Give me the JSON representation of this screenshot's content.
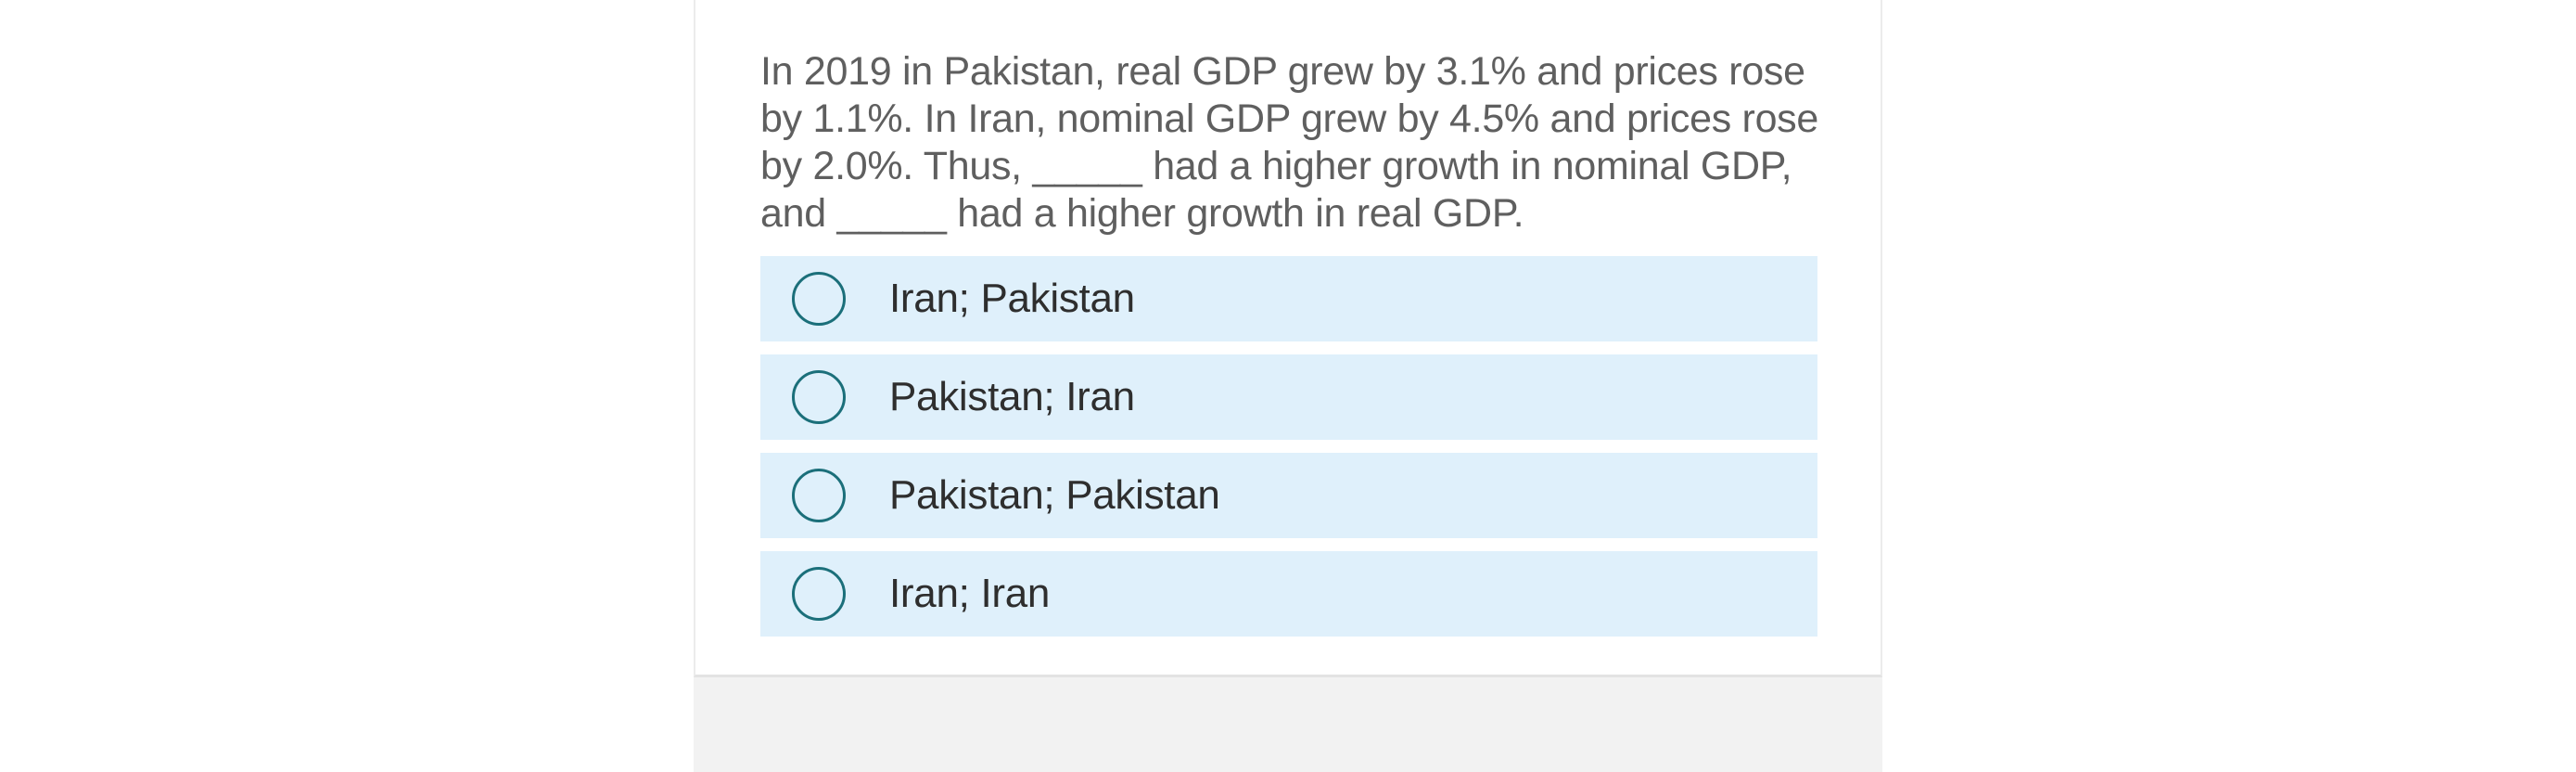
{
  "question": {
    "text": "In 2019 in Pakistan, real GDP grew by 3.1% and prices rose by 1.1%. In Iran, nominal GDP grew by 4.5% and prices rose by 2.0%. Thus, _____ had a higher growth in nominal GDP, and _____ had a higher growth in real GDP."
  },
  "choices": [
    {
      "label": "Iran; Pakistan",
      "selected": false
    },
    {
      "label": "Pakistan; Iran",
      "selected": false
    },
    {
      "label": "Pakistan; Pakistan",
      "selected": false
    },
    {
      "label": "Iran; Iran",
      "selected": false
    }
  ],
  "colors": {
    "choice_background": "#dff0fb",
    "radio_border": "#1b6f7a",
    "question_text": "#5f5f5f",
    "choice_text": "#2e2e2e"
  }
}
